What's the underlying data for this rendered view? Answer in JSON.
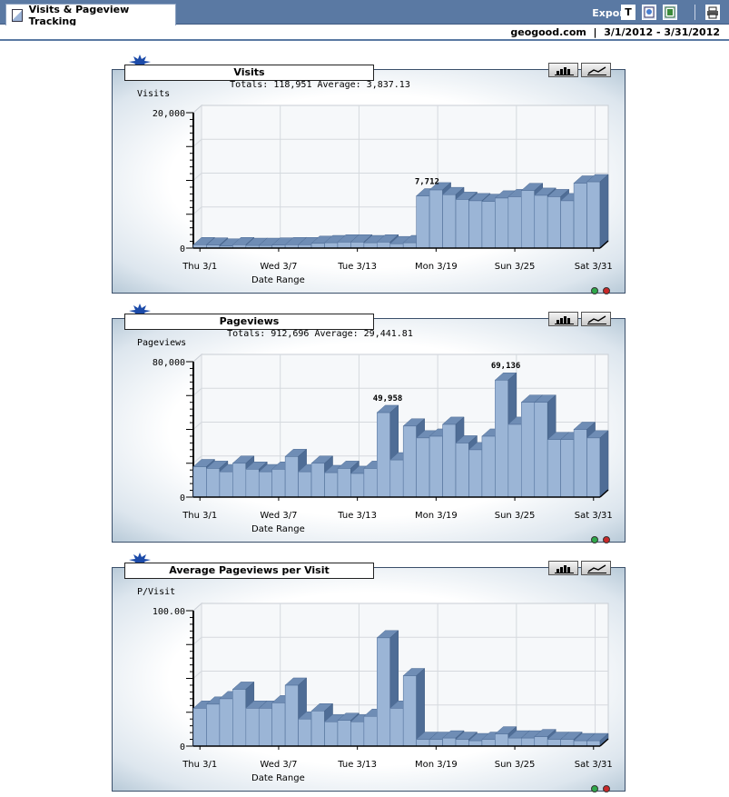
{
  "header": {
    "tab_label": "Visits & Pageview Tracking",
    "export_label": "Export",
    "export_buttons": [
      "T"
    ],
    "site": "geogood.com",
    "date_range": "3/1/2012 - 3/31/2012"
  },
  "date_labels": [
    "Thu 3/1",
    "Wed 3/7",
    "Tue 3/13",
    "Mon 3/19",
    "Sun 3/25",
    "Sat 3/31"
  ],
  "x_axis_label": "Date Range",
  "colors": {
    "header_bg": "#5a79a3",
    "bar_front": "#9bb5d6",
    "bar_top": "#6f8db5",
    "bar_side": "#4f6d96"
  },
  "charts": {
    "visits": {
      "title": "Visits",
      "totals_text": "Totals: 118,951   Average: 3,837.13",
      "ylabel": "Visits",
      "ticks": [
        "20,000",
        "0"
      ]
    },
    "pageviews": {
      "title": "Pageviews",
      "totals_text": "Totals: 912,696   Average: 29,441.81",
      "ylabel": "Pageviews",
      "ticks": [
        "80,000",
        "0"
      ]
    },
    "ppv": {
      "title": "Average Pageviews per Visit",
      "totals_text": "",
      "ylabel": "P/Visit",
      "ticks": [
        "100.00",
        "0"
      ]
    }
  },
  "chart_data": [
    {
      "type": "bar",
      "title": "Visits",
      "ylabel": "Visits",
      "xlabel": "Date Range",
      "ylim": [
        0,
        20000
      ],
      "x": [
        "3/1",
        "3/2",
        "3/3",
        "3/4",
        "3/5",
        "3/6",
        "3/7",
        "3/8",
        "3/9",
        "3/10",
        "3/11",
        "3/12",
        "3/13",
        "3/14",
        "3/15",
        "3/16",
        "3/17",
        "3/18",
        "3/19",
        "3/20",
        "3/21",
        "3/22",
        "3/23",
        "3/24",
        "3/25",
        "3/26",
        "3/27",
        "3/28",
        "3/29",
        "3/30",
        "3/31"
      ],
      "values": [
        500,
        450,
        300,
        500,
        400,
        400,
        450,
        500,
        500,
        700,
        800,
        900,
        900,
        800,
        900,
        650,
        800,
        7712,
        8600,
        7900,
        7200,
        7000,
        6900,
        7400,
        7600,
        8500,
        7800,
        7600,
        7000,
        9600,
        9800
      ],
      "annotations": [
        {
          "x": "3/18",
          "label": "7,712"
        }
      ]
    },
    {
      "type": "bar",
      "title": "Pageviews",
      "ylabel": "Pageviews",
      "xlabel": "Date Range",
      "ylim": [
        0,
        80000
      ],
      "x": [
        "3/1",
        "3/2",
        "3/3",
        "3/4",
        "3/5",
        "3/6",
        "3/7",
        "3/8",
        "3/9",
        "3/10",
        "3/11",
        "3/12",
        "3/13",
        "3/14",
        "3/15",
        "3/16",
        "3/17",
        "3/18",
        "3/19",
        "3/20",
        "3/21",
        "3/22",
        "3/23",
        "3/24",
        "3/25",
        "3/26",
        "3/27",
        "3/28",
        "3/29",
        "3/30",
        "3/31"
      ],
      "values": [
        18000,
        17000,
        15000,
        20000,
        16500,
        15000,
        16500,
        24000,
        15000,
        20000,
        14500,
        17000,
        14000,
        17000,
        49958,
        22000,
        42000,
        35000,
        36000,
        43000,
        32000,
        28000,
        36000,
        69136,
        43000,
        56000,
        56000,
        34000,
        34000,
        40000,
        35000
      ],
      "annotations": [
        {
          "x": "3/15",
          "label": "49,958"
        },
        {
          "x": "3/24",
          "label": "69,136"
        }
      ]
    },
    {
      "type": "bar",
      "title": "Average Pageviews per Visit",
      "ylabel": "P/Visit",
      "xlabel": "Date Range",
      "ylim": [
        0,
        100
      ],
      "x": [
        "3/1",
        "3/2",
        "3/3",
        "3/4",
        "3/5",
        "3/6",
        "3/7",
        "3/8",
        "3/9",
        "3/10",
        "3/11",
        "3/12",
        "3/13",
        "3/14",
        "3/15",
        "3/16",
        "3/17",
        "3/18",
        "3/19",
        "3/20",
        "3/21",
        "3/22",
        "3/23",
        "3/24",
        "3/25",
        "3/26",
        "3/27",
        "3/28",
        "3/29",
        "3/30",
        "3/31"
      ],
      "values": [
        28,
        31,
        35,
        42,
        28,
        28,
        32,
        45,
        20,
        26,
        18,
        19,
        18,
        22,
        80,
        28,
        52,
        5,
        5,
        6,
        5,
        4,
        5,
        9,
        6,
        6,
        7,
        5,
        5,
        4,
        4
      ],
      "annotations": []
    }
  ]
}
